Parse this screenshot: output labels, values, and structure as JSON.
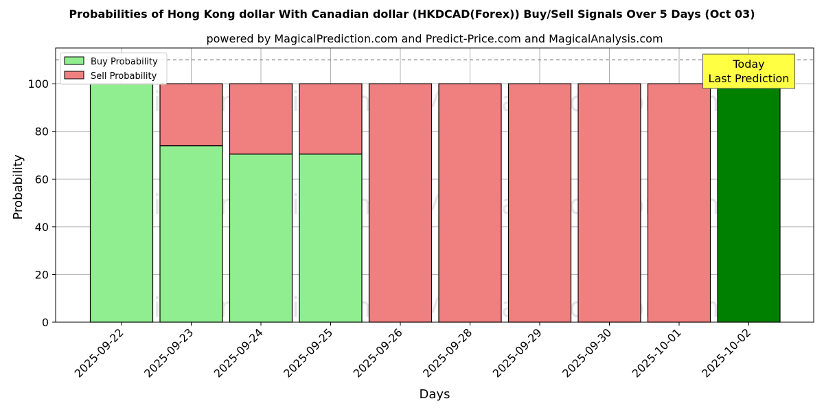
{
  "chart_data": {
    "type": "bar",
    "title": "Probabilities of Hong Kong dollar With Canadian dollar (HKDCAD(Forex)) Buy/Sell Signals Over 5 Days (Oct 03)",
    "subtitle": "powered by MagicalPrediction.com and Predict-Price.com and MagicalAnalysis.com",
    "xlabel": "Days",
    "ylabel": "Probability",
    "ylim": [
      0,
      115
    ],
    "yticks": [
      0,
      20,
      40,
      60,
      80,
      100
    ],
    "grid": true,
    "stacked": true,
    "legend_position": "top-left",
    "categories": [
      "2025-09-22",
      "2025-09-23",
      "2025-09-24",
      "2025-09-25",
      "2025-09-26",
      "2025-09-28",
      "2025-09-29",
      "2025-09-30",
      "2025-10-01",
      "2025-10-02"
    ],
    "series": [
      {
        "name": "Buy Probability",
        "color": "#90ee90",
        "values": [
          100,
          74,
          70.5,
          70.5,
          0,
          0,
          0,
          0,
          0,
          100
        ]
      },
      {
        "name": "Sell Probability",
        "color": "#f08080",
        "values": [
          0,
          26,
          29.5,
          29.5,
          100,
          100,
          100,
          100,
          100,
          0
        ]
      }
    ],
    "highlight": {
      "index": 9,
      "color": "#008000"
    },
    "reference_line": {
      "y": 110,
      "style": "dashed"
    },
    "annotation": {
      "lines": [
        "Today",
        "Last Prediction"
      ],
      "color": "#ffff44"
    },
    "watermarks": [
      "MagicalAnalysis.com",
      "MagicalPrediction.com"
    ]
  }
}
